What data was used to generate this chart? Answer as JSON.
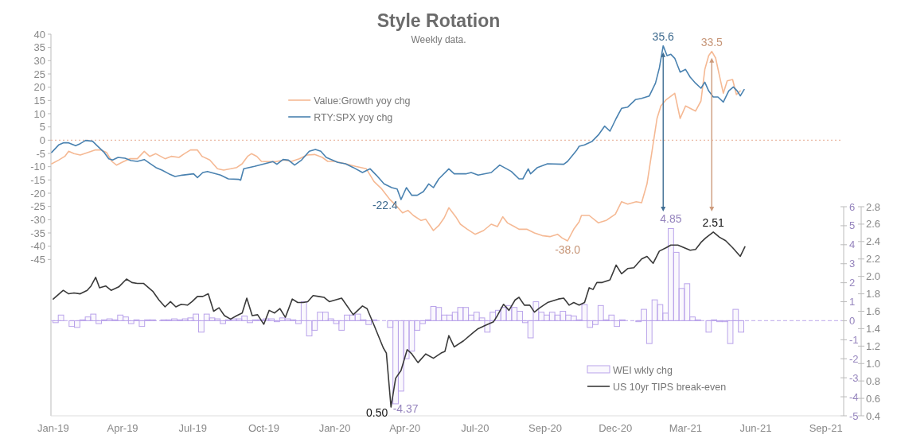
{
  "chart_data": {
    "type": "line",
    "title": "Style Rotation",
    "subtitle": "Weekly data.",
    "xlim": [
      "2018-12-29",
      "2021-10-20"
    ],
    "xticks": [
      {
        "value": "2019-01-01",
        "label": "Jan-19"
      },
      {
        "value": "2019-04-01",
        "label": "Apr-19"
      },
      {
        "value": "2019-07-01",
        "label": "Jul-19"
      },
      {
        "value": "2019-10-01",
        "label": "Oct-19"
      },
      {
        "value": "2020-01-01",
        "label": "Jan-20"
      },
      {
        "value": "2020-04-01",
        "label": "Apr-20"
      },
      {
        "value": "2020-07-01",
        "label": "Jul-20"
      },
      {
        "value": "2020-09-30",
        "label": "Sep-20"
      },
      {
        "value": "2020-12-30",
        "label": "Dec-20"
      },
      {
        "value": "2021-03-31",
        "label": "Mar-21"
      },
      {
        "value": "2021-06-30",
        "label": "Jun-21"
      },
      {
        "value": "2021-09-29",
        "label": "Sep-21"
      }
    ],
    "ylim": [
      -104,
      40
    ],
    "yticks": [
      40,
      35,
      30,
      25,
      20,
      15,
      10,
      5,
      0,
      -5,
      -10,
      -15,
      -20,
      -25,
      -30,
      -35,
      -40,
      -45
    ],
    "y2lim": [
      -5,
      6
    ],
    "y2ticks": [
      6,
      5,
      4,
      3,
      2,
      1,
      0,
      -1,
      -2,
      -3,
      -4,
      -5
    ],
    "y3lim": [
      0.4,
      2.8
    ],
    "y3ticks": [
      2.8,
      2.6,
      2.4,
      2.2,
      {
        "value": 2,
        "label": "2.0"
      },
      1.8,
      1.6,
      1.4,
      1.2,
      {
        "value": 1,
        "label": "1.0"
      },
      0.8,
      0.6,
      0.4
    ],
    "legend": "right",
    "ref_lines": [
      {
        "axis": "y",
        "value": 0,
        "color": "#eab9a4",
        "line_style": "dotted"
      },
      {
        "axis": "y2",
        "value": 0,
        "color": "#c9b9ee",
        "line_style": "dashed"
      }
    ],
    "annotations": [
      {
        "text": "35.6",
        "x": "2021-03-02",
        "y": 35.6
      },
      {
        "text": "-22.4",
        "x": "2020-03-27",
        "y": -22.4
      },
      {
        "text": "33.5",
        "x": "2021-05-04",
        "y": 33.5
      },
      {
        "text": "-38.0",
        "x": "2020-10-29",
        "y": -38.0
      }
    ],
    "series": [
      {
        "name": "Value:Growth yoy chg",
        "axis": "y",
        "color": "#f5b994",
        "x": [
          "2018-12-30",
          "2019-01-08",
          "2019-01-16",
          "2019-01-21",
          "2019-01-28",
          "2019-02-05",
          "2019-02-15",
          "2019-02-24",
          "2019-03-04",
          "2019-03-11",
          "2019-03-18",
          "2019-03-24",
          "2019-03-31",
          "2019-04-10",
          "2019-04-20",
          "2019-04-29",
          "2019-05-06",
          "2019-05-14",
          "2019-05-26",
          "2019-06-03",
          "2019-06-13",
          "2019-06-20",
          "2019-06-28",
          "2019-07-07",
          "2019-07-13",
          "2019-07-23",
          "2019-08-02",
          "2019-08-10",
          "2019-08-19",
          "2019-08-27",
          "2019-09-03",
          "2019-09-10",
          "2019-09-15",
          "2019-09-22",
          "2019-09-28",
          "2019-10-07",
          "2019-10-17",
          "2019-10-27",
          "2019-11-06",
          "2019-11-16",
          "2019-11-26",
          "2019-12-06",
          "2019-12-16",
          "2019-12-23",
          "2020-01-01",
          "2020-01-15",
          "2020-01-28",
          "2020-02-11",
          "2020-02-21",
          "2020-03-02",
          "2020-03-12",
          "2020-03-22",
          "2020-03-29",
          "2020-04-05",
          "2020-04-12",
          "2020-04-22",
          "2020-04-28",
          "2020-05-08",
          "2020-05-15",
          "2020-05-22",
          "2020-05-28",
          "2020-06-06",
          "2020-06-12",
          "2020-06-21",
          "2020-07-01",
          "2020-07-12",
          "2020-07-22",
          "2020-07-30",
          "2020-08-06",
          "2020-08-12",
          "2020-08-21",
          "2020-08-27",
          "2020-09-06",
          "2020-09-16",
          "2020-09-26",
          "2020-10-06",
          "2020-10-16",
          "2020-10-22",
          "2020-10-29",
          "2020-11-06",
          "2020-11-13",
          "2020-11-16",
          "2020-11-26",
          "2020-12-08",
          "2020-12-18",
          "2020-12-30",
          "2021-01-07",
          "2021-01-15",
          "2021-01-26",
          "2021-02-02",
          "2021-02-09",
          "2021-02-15",
          "2021-02-22",
          "2021-02-27",
          "2021-03-06",
          "2021-03-17",
          "2021-03-24",
          "2021-03-31",
          "2021-04-13",
          "2021-04-20",
          "2021-04-25",
          "2021-04-30",
          "2021-05-04",
          "2021-05-09",
          "2021-05-14",
          "2021-05-19",
          "2021-05-24",
          "2021-05-31",
          "2021-06-05",
          "2021-06-10"
        ],
        "values": [
          -8.9,
          -7.5,
          -6.1,
          -4.2,
          -5.1,
          -5.6,
          -4.6,
          -3.7,
          -3.7,
          -4.6,
          -8.0,
          -9.4,
          -8.4,
          -7.0,
          -7.0,
          -4.2,
          -6.1,
          -5.1,
          -7.0,
          -6.1,
          -6.5,
          -5.1,
          -3.7,
          -3.7,
          -6.1,
          -7.5,
          -10.8,
          -11.3,
          -10.8,
          -10.3,
          -8.9,
          -6.1,
          -5.1,
          -6.1,
          -8.0,
          -8.1,
          -8.1,
          -7.5,
          -8.0,
          -7.0,
          -5.6,
          -5.4,
          -6.5,
          -8.0,
          -8.0,
          -8.9,
          -9.9,
          -10.8,
          -15.6,
          -18.4,
          -22.2,
          -25.1,
          -27.4,
          -26.5,
          -28.4,
          -30.3,
          -29.8,
          -34.1,
          -32.2,
          -29.3,
          -25.5,
          -28.9,
          -31.7,
          -33.6,
          -35.5,
          -34.1,
          -31.7,
          -32.6,
          -28.9,
          -31.2,
          -32.6,
          -33.6,
          -33.6,
          -35.0,
          -36.0,
          -36.4,
          -35.5,
          -36.9,
          -38.0,
          -33.6,
          -30.8,
          -28.4,
          -28.4,
          -31.2,
          -30.3,
          -27.9,
          -23.2,
          -24.1,
          -23.2,
          -23.6,
          -16.5,
          -5.1,
          8.2,
          12.9,
          15.3,
          17.7,
          8.2,
          12.9,
          11.0,
          14.8,
          26.7,
          31.9,
          33.5,
          31.0,
          24.3,
          17.7,
          22.4,
          22.9,
          17.2,
          18.6
        ]
      },
      {
        "name": "RTY:SPX yoy chg",
        "axis": "y",
        "color": "#4a82b0",
        "x": [
          "2018-12-30",
          "2019-01-08",
          "2019-01-14",
          "2019-01-21",
          "2019-01-30",
          "2019-02-05",
          "2019-02-12",
          "2019-02-21",
          "2019-02-27",
          "2019-03-08",
          "2019-03-14",
          "2019-03-19",
          "2019-03-26",
          "2019-04-04",
          "2019-04-12",
          "2019-04-20",
          "2019-04-29",
          "2019-05-06",
          "2019-05-14",
          "2019-05-22",
          "2019-05-31",
          "2019-06-08",
          "2019-06-17",
          "2019-07-02",
          "2019-07-07",
          "2019-07-14",
          "2019-07-20",
          "2019-08-06",
          "2019-08-16",
          "2019-08-30",
          "2019-09-01",
          "2019-09-05",
          "2019-09-19",
          "2019-10-02",
          "2019-10-13",
          "2019-10-18",
          "2019-10-26",
          "2019-11-02",
          "2019-11-10",
          "2019-11-19",
          "2019-11-29",
          "2019-12-07",
          "2019-12-14",
          "2019-12-21",
          "2020-01-05",
          "2020-01-15",
          "2020-01-25",
          "2020-02-06",
          "2020-02-16",
          "2020-02-24",
          "2020-03-05",
          "2020-03-15",
          "2020-03-22",
          "2020-03-27",
          "2020-04-03",
          "2020-04-10",
          "2020-04-17",
          "2020-04-25",
          "2020-05-02",
          "2020-05-08",
          "2020-05-15",
          "2020-05-28",
          "2020-06-04",
          "2020-06-19",
          "2020-06-26",
          "2020-07-05",
          "2020-07-22",
          "2020-08-02",
          "2020-08-11",
          "2020-08-17",
          "2020-08-27",
          "2020-09-01",
          "2020-09-08",
          "2020-09-11",
          "2020-09-20",
          "2020-10-03",
          "2020-10-24",
          "2020-10-29",
          "2020-11-10",
          "2020-11-13",
          "2020-11-20",
          "2020-11-30",
          "2020-12-08",
          "2020-12-16",
          "2020-12-23",
          "2020-12-31",
          "2021-01-07",
          "2021-01-15",
          "2021-01-25",
          "2021-02-02",
          "2021-02-12",
          "2021-02-20",
          "2021-02-25",
          "2021-03-02",
          "2021-03-07",
          "2021-03-12",
          "2021-03-17",
          "2021-03-24",
          "2021-03-31",
          "2021-04-06",
          "2021-04-13",
          "2021-04-20",
          "2021-04-25",
          "2021-04-30",
          "2021-05-06",
          "2021-05-12",
          "2021-05-19",
          "2021-05-26",
          "2021-06-01",
          "2021-06-06",
          "2021-06-10",
          "2021-06-15"
        ],
        "values": [
          -4.6,
          -1.8,
          -1.0,
          -1.0,
          -2.1,
          -1.3,
          -0.1,
          -0.4,
          -2.1,
          -4.6,
          -7.0,
          -7.5,
          -6.5,
          -6.8,
          -7.7,
          -8.0,
          -7.3,
          -8.7,
          -10.3,
          -11.3,
          -12.7,
          -13.7,
          -13.2,
          -12.7,
          -14.1,
          -12.2,
          -11.8,
          -13.2,
          -14.6,
          -14.8,
          -15.1,
          -10.8,
          -9.9,
          -8.9,
          -8.1,
          -9.1,
          -7.3,
          -7.5,
          -9.4,
          -7.5,
          -4.2,
          -3.5,
          -4.2,
          -6.5,
          -8.4,
          -8.9,
          -10.3,
          -12.2,
          -10.8,
          -13.2,
          -16.5,
          -17.9,
          -18.4,
          -22.4,
          -17.9,
          -20.8,
          -20.8,
          -19.4,
          -16.5,
          -17.9,
          -14.6,
          -10.8,
          -12.7,
          -12.7,
          -12.2,
          -13.2,
          -12.2,
          -9.4,
          -10.8,
          -11.8,
          -14.6,
          -14.6,
          -10.8,
          -12.7,
          -10.3,
          -8.9,
          -9.1,
          -8.0,
          -3.7,
          -2.3,
          -1.8,
          -0.4,
          2.0,
          5.3,
          3.4,
          8.2,
          12.0,
          12.5,
          15.3,
          15.8,
          16.7,
          21.5,
          27.2,
          35.6,
          31.9,
          32.4,
          30.9,
          25.7,
          26.7,
          23.8,
          21.5,
          19.6,
          21.9,
          18.6,
          16.3,
          16.3,
          14.4,
          18.6,
          20.1,
          18.6,
          16.7,
          19.1
        ]
      },
      {
        "name": "WEI wkly chg",
        "type": "bar",
        "axis": "y2",
        "color": "#b9a3ea",
        "x": [
          "2019-01-04",
          "2019-01-11",
          "2019-01-18",
          "2019-01-25",
          "2019-02-01",
          "2019-02-08",
          "2019-02-15",
          "2019-02-22",
          "2019-03-01",
          "2019-03-08",
          "2019-03-15",
          "2019-03-22",
          "2019-03-29",
          "2019-04-05",
          "2019-04-12",
          "2019-04-19",
          "2019-04-26",
          "2019-05-03",
          "2019-05-10",
          "2019-05-17",
          "2019-05-24",
          "2019-05-31",
          "2019-06-07",
          "2019-06-14",
          "2019-06-21",
          "2019-06-28",
          "2019-07-05",
          "2019-07-12",
          "2019-07-19",
          "2019-07-26",
          "2019-08-02",
          "2019-08-09",
          "2019-08-16",
          "2019-08-23",
          "2019-08-30",
          "2019-09-06",
          "2019-09-13",
          "2019-09-20",
          "2019-09-27",
          "2019-10-04",
          "2019-10-11",
          "2019-10-18",
          "2019-10-25",
          "2019-11-01",
          "2019-11-08",
          "2019-11-15",
          "2019-11-22",
          "2019-11-29",
          "2019-12-06",
          "2019-12-13",
          "2019-12-20",
          "2019-12-27",
          "2020-01-03",
          "2020-01-10",
          "2020-01-17",
          "2020-01-24",
          "2020-01-31",
          "2020-02-07",
          "2020-02-14",
          "2020-02-21",
          "2020-02-28",
          "2020-03-06",
          "2020-03-13",
          "2020-03-20",
          "2020-03-27",
          "2020-04-03",
          "2020-04-10",
          "2020-04-17",
          "2020-04-24",
          "2020-05-01",
          "2020-05-08",
          "2020-05-15",
          "2020-05-22",
          "2020-05-29",
          "2020-06-05",
          "2020-06-12",
          "2020-06-19",
          "2020-06-26",
          "2020-07-03",
          "2020-07-10",
          "2020-07-17",
          "2020-07-24",
          "2020-07-31",
          "2020-08-07",
          "2020-08-14",
          "2020-08-21",
          "2020-08-28",
          "2020-09-04",
          "2020-09-11",
          "2020-09-18",
          "2020-09-25",
          "2020-10-02",
          "2020-10-09",
          "2020-10-16",
          "2020-10-23",
          "2020-10-30",
          "2020-11-06",
          "2020-11-13",
          "2020-11-20",
          "2020-11-27",
          "2020-12-04",
          "2020-12-11",
          "2020-12-18",
          "2020-12-25",
          "2021-01-01",
          "2021-01-08",
          "2021-01-15",
          "2021-01-22",
          "2021-01-29",
          "2021-02-05",
          "2021-02-12",
          "2021-02-19",
          "2021-02-26",
          "2021-03-05",
          "2021-03-12",
          "2021-03-19",
          "2021-03-26",
          "2021-04-02",
          "2021-04-09",
          "2021-04-16",
          "2021-04-23",
          "2021-04-30",
          "2021-05-07",
          "2021-05-14",
          "2021-05-21",
          "2021-05-28",
          "2021-06-04",
          "2021-06-11"
        ],
        "values": [
          -0.1,
          0.3,
          0,
          -0.3,
          -0.35,
          0.05,
          0.2,
          0.35,
          -0.15,
          0.05,
          0.1,
          0.05,
          0.3,
          0.2,
          -0.15,
          0.05,
          -0.3,
          0.05,
          0.05,
          0,
          0.05,
          0.05,
          0.1,
          0.05,
          0.1,
          0.15,
          0.35,
          -0.6,
          0.35,
          0.15,
          0.1,
          -0.15,
          0.05,
          0.1,
          0.1,
          0.25,
          -0.1,
          0.05,
          0.05,
          0.1,
          0.1,
          -0.05,
          0.15,
          0.1,
          0.05,
          -0.15,
          1.0,
          -0.8,
          -0.5,
          0.45,
          0.45,
          0.1,
          -0.15,
          -0.5,
          0.3,
          0.3,
          0.35,
          0.05,
          -0.2,
          0.05,
          0,
          0,
          -0.35,
          -4.37,
          -3.7,
          -2.0,
          -1.6,
          -0.5,
          -0.15,
          0.05,
          0.75,
          0.7,
          0.3,
          0.3,
          0.45,
          0.7,
          0.7,
          0.3,
          0.45,
          0.15,
          -0.6,
          0.45,
          0.55,
          0.7,
          0.8,
          0.7,
          0.5,
          -0.1,
          -0.9,
          1.0,
          0.45,
          0.3,
          0.45,
          0.3,
          0.5,
          0.3,
          0.25,
          0.05,
          0.85,
          -0.35,
          -0.2,
          0.8,
          0.05,
          0.3,
          -0.3,
          0.05,
          0,
          0,
          -0.05,
          0.6,
          -1.2,
          1.1,
          0.85,
          0.4,
          4.85,
          3.6,
          1.7,
          1.95,
          0.2,
          0.05,
          0,
          -0.6,
          0.05,
          -0.05,
          -0.05,
          -1.2,
          0.6,
          -0.6
        ],
        "value_labels": [
          null,
          null,
          null,
          null,
          null,
          null,
          null,
          null,
          null,
          null,
          null,
          null,
          null,
          null,
          null,
          null,
          null,
          null,
          null,
          null,
          null,
          null,
          null,
          null,
          null,
          null,
          null,
          null,
          null,
          null,
          null,
          null,
          null,
          null,
          null,
          null,
          null,
          null,
          null,
          null,
          null,
          null,
          null,
          null,
          null,
          null,
          null,
          null,
          null,
          null,
          null,
          null,
          null,
          null,
          null,
          null,
          null,
          null,
          null,
          null,
          null,
          null,
          null,
          "-4.37",
          null,
          null,
          null,
          null,
          null,
          null,
          null,
          null,
          null,
          null,
          null,
          null,
          null,
          null,
          null,
          null,
          null,
          null,
          null,
          null,
          null,
          null,
          null,
          null,
          null,
          null,
          null,
          null,
          null,
          null,
          null,
          null,
          null,
          null,
          null,
          null,
          null,
          null,
          null,
          null,
          null,
          null,
          null,
          null,
          null,
          null,
          null,
          null,
          null,
          null,
          "4.85",
          null,
          null,
          null,
          null,
          null,
          null,
          null,
          null,
          null,
          null,
          null,
          null,
          null
        ]
      },
      {
        "name": "US 10yr TIPS break-even",
        "axis": "y3",
        "color": "#3a3a3a",
        "x": [
          "2019-01-01",
          "2019-01-14",
          "2019-01-21",
          "2019-01-28",
          "2019-02-05",
          "2019-02-14",
          "2019-02-19",
          "2019-02-25",
          "2019-03-02",
          "2019-03-10",
          "2019-03-17",
          "2019-03-27",
          "2019-04-06",
          "2019-04-13",
          "2019-04-20",
          "2019-04-28",
          "2019-05-10",
          "2019-05-18",
          "2019-05-26",
          "2019-06-02",
          "2019-06-09",
          "2019-06-16",
          "2019-06-24",
          "2019-06-30",
          "2019-07-07",
          "2019-07-14",
          "2019-07-21",
          "2019-07-28",
          "2019-08-04",
          "2019-08-11",
          "2019-08-19",
          "2019-08-27",
          "2019-09-03",
          "2019-09-09",
          "2019-09-16",
          "2019-09-23",
          "2019-10-01",
          "2019-10-08",
          "2019-10-15",
          "2019-10-22",
          "2019-10-29",
          "2019-11-07",
          "2019-11-14",
          "2019-11-21",
          "2019-11-27",
          "2019-12-04",
          "2019-12-11",
          "2019-12-18",
          "2019-12-25",
          "2020-01-10",
          "2020-01-25",
          "2020-02-06",
          "2020-02-12",
          "2020-02-21",
          "2020-03-04",
          "2020-03-08",
          "2020-03-14",
          "2020-03-20",
          "2020-03-27",
          "2020-04-04",
          "2020-04-10",
          "2020-04-18",
          "2020-04-28",
          "2020-05-08",
          "2020-05-18",
          "2020-05-23",
          "2020-05-28",
          "2020-06-04",
          "2020-06-16",
          "2020-06-28",
          "2020-07-05",
          "2020-07-15",
          "2020-07-25",
          "2020-07-30",
          "2020-08-07",
          "2020-08-14",
          "2020-08-22",
          "2020-08-27",
          "2020-09-03",
          "2020-09-10",
          "2020-09-16",
          "2020-09-23",
          "2020-10-03",
          "2020-10-17",
          "2020-10-24",
          "2020-10-31",
          "2020-11-06",
          "2020-11-13",
          "2020-11-20",
          "2020-11-26",
          "2020-12-01",
          "2020-12-06",
          "2020-12-13",
          "2020-12-23",
          "2020-12-31",
          "2021-01-07",
          "2021-01-15",
          "2021-01-23",
          "2021-02-02",
          "2021-02-09",
          "2021-02-17",
          "2021-02-25",
          "2021-03-06",
          "2021-03-12",
          "2021-03-21",
          "2021-03-29",
          "2021-04-06",
          "2021-04-13",
          "2021-04-20",
          "2021-04-26",
          "2021-05-06",
          "2021-05-14",
          "2021-05-22",
          "2021-05-31",
          "2021-06-10",
          "2021-06-16"
        ],
        "values": [
          1.74,
          1.84,
          1.8,
          1.81,
          1.8,
          1.84,
          1.89,
          1.99,
          1.87,
          1.89,
          1.84,
          1.88,
          1.97,
          1.93,
          1.92,
          1.92,
          1.83,
          1.73,
          1.65,
          1.71,
          1.65,
          1.68,
          1.67,
          1.71,
          1.77,
          1.77,
          1.8,
          1.6,
          1.64,
          1.55,
          1.51,
          1.55,
          1.58,
          1.75,
          1.55,
          1.56,
          1.45,
          1.61,
          1.58,
          1.63,
          1.53,
          1.74,
          1.7,
          1.7,
          1.71,
          1.78,
          1.77,
          1.76,
          1.71,
          1.75,
          1.56,
          1.66,
          1.63,
          1.44,
          1.18,
          1.12,
          0.5,
          0.83,
          0.92,
          1.16,
          1.11,
          1.01,
          1.11,
          1.06,
          1.12,
          1.14,
          1.32,
          1.19,
          1.26,
          1.35,
          1.4,
          1.44,
          1.48,
          1.55,
          1.68,
          1.61,
          1.73,
          1.76,
          1.67,
          1.67,
          1.59,
          1.64,
          1.7,
          1.74,
          1.75,
          1.67,
          1.7,
          1.67,
          1.7,
          1.87,
          1.85,
          1.93,
          1.93,
          1.96,
          2.13,
          2.03,
          2.09,
          2.1,
          2.2,
          2.23,
          2.15,
          2.29,
          2.33,
          2.36,
          2.36,
          2.33,
          2.3,
          2.31,
          2.39,
          2.44,
          2.51,
          2.45,
          2.41,
          2.33,
          2.23,
          2.34
        ],
        "value_labels": [
          null,
          null,
          null,
          null,
          null,
          null,
          null,
          null,
          null,
          null,
          null,
          null,
          null,
          null,
          null,
          null,
          null,
          null,
          null,
          null,
          null,
          null,
          null,
          null,
          null,
          null,
          null,
          null,
          null,
          null,
          null,
          null,
          null,
          null,
          null,
          null,
          null,
          null,
          null,
          null,
          null,
          null,
          null,
          null,
          null,
          null,
          null,
          null,
          null,
          null,
          null,
          null,
          null,
          null,
          null,
          null,
          "0.50",
          null,
          null,
          null,
          null,
          null,
          null,
          null,
          null,
          null,
          null,
          null,
          null,
          null,
          null,
          null,
          null,
          null,
          null,
          null,
          null,
          null,
          null,
          null,
          null,
          null,
          null,
          null,
          null,
          null,
          null,
          null,
          null,
          null,
          null,
          null,
          null,
          null,
          null,
          null,
          null,
          null,
          null,
          null,
          null,
          null,
          null,
          null,
          null,
          null,
          null,
          null,
          null,
          null,
          "2.51",
          null,
          null,
          null,
          null,
          null
        ]
      }
    ]
  }
}
